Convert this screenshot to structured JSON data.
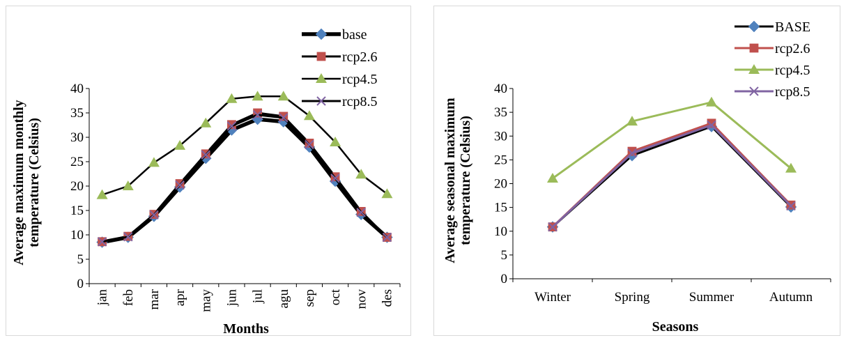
{
  "chart_data": [
    {
      "type": "line",
      "xlabel": "Months",
      "ylabel": [
        "Average maximum monthly",
        "temperature (Celsius)"
      ],
      "ylim": [
        0,
        40
      ],
      "yticks": [
        "0",
        "5",
        "10",
        "15",
        "20",
        "25",
        "30",
        "35",
        "40"
      ],
      "categories": [
        "jan",
        "feb",
        "mar",
        "apr",
        "may",
        "jun",
        "jul",
        "agu",
        "sep",
        "oct",
        "nov",
        "des"
      ],
      "legend_position": "top-right",
      "series": [
        {
          "name": "base",
          "color": "#000000",
          "marker": "diamond",
          "marker_color": "#4f81bd",
          "values": [
            8.5,
            9.5,
            13.8,
            19.8,
            25.7,
            31.5,
            33.7,
            33.2,
            28.0,
            21.0,
            14.2,
            9.5
          ]
        },
        {
          "name": "rcp2.6",
          "color": "#000000",
          "marker": "square",
          "marker_color": "#c0504d",
          "values": [
            8.6,
            9.7,
            14.2,
            20.5,
            26.6,
            32.6,
            35.0,
            34.3,
            28.8,
            21.9,
            14.8,
            9.5
          ]
        },
        {
          "name": "rcp4.5",
          "color": "#000000",
          "marker": "triangle",
          "marker_color": "#9bbb59",
          "values": [
            18.2,
            20.0,
            24.8,
            28.3,
            32.9,
            37.9,
            38.4,
            38.4,
            34.4,
            29.0,
            22.4,
            18.4
          ]
        },
        {
          "name": "rcp8.5",
          "color": "#000000",
          "marker": "x",
          "marker_color": "#8064a2",
          "values": [
            8.6,
            9.6,
            14.1,
            20.2,
            26.4,
            32.3,
            34.6,
            34.0,
            28.5,
            21.6,
            14.6,
            9.5
          ]
        }
      ]
    },
    {
      "type": "line",
      "xlabel": "Seasons",
      "ylabel": [
        "Average seasonal maximum",
        "temperature (Celsius)"
      ],
      "ylim": [
        0,
        40
      ],
      "yticks": [
        "0",
        "5",
        "10",
        "15",
        "20",
        "25",
        "30",
        "35",
        "40"
      ],
      "categories": [
        "Winter",
        "Spring",
        "Summer",
        "Autumn"
      ],
      "legend_position": "top-right",
      "series": [
        {
          "name": "BASE",
          "color": "#000000",
          "marker": "diamond",
          "marker_color": "#4f81bd",
          "values": [
            10.9,
            25.9,
            32.0,
            15.1
          ]
        },
        {
          "name": "rcp2.6",
          "color": "#c0504d",
          "marker": "square",
          "marker_color": "#c0504d",
          "values": [
            10.9,
            26.8,
            32.7,
            15.5
          ]
        },
        {
          "name": "rcp4.5",
          "color": "#9bbb59",
          "marker": "triangle",
          "marker_color": "#9bbb59",
          "values": [
            21.1,
            33.1,
            37.1,
            23.2
          ]
        },
        {
          "name": "rcp8.5",
          "color": "#8064a2",
          "marker": "x",
          "marker_color": "#8064a2",
          "values": [
            10.9,
            26.4,
            32.3,
            15.3
          ]
        }
      ]
    }
  ]
}
